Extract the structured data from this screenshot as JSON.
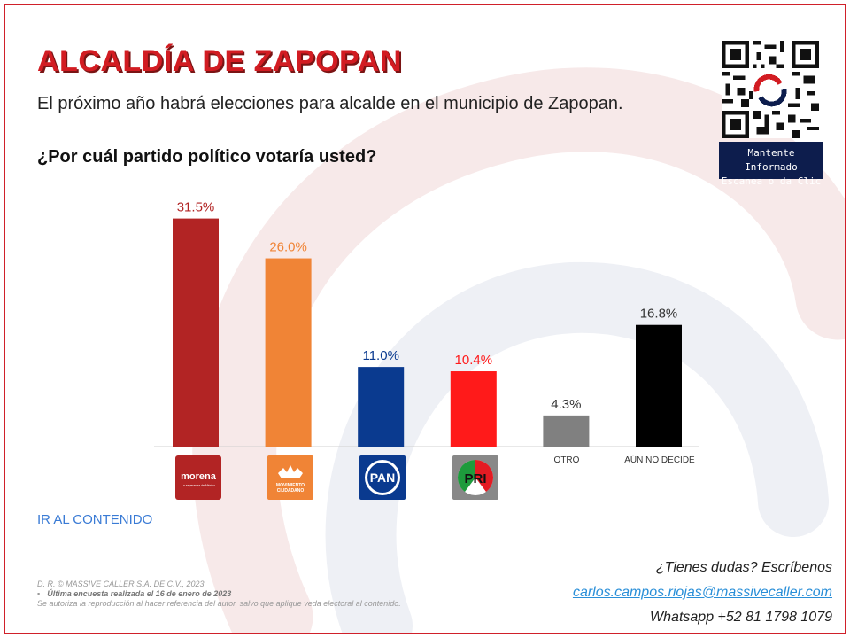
{
  "header": {
    "title": "ALCALDÍA DE ZAPOPAN",
    "subtitle": "El próximo año habrá elecciones para alcalde en el municipio de Zapopan.",
    "question": "¿Por cuál partido político votaría usted?"
  },
  "qr": {
    "caption_line1": "Mantente Informado",
    "caption_line2": "Escanea o da Clic"
  },
  "chart_data": {
    "type": "bar",
    "categories": [
      "morena",
      "MOVIMIENTO CIUDADANO",
      "PAN",
      "PRI",
      "OTRO",
      "AÚN NO DECIDE"
    ],
    "values": [
      31.5,
      26.0,
      11.0,
      10.4,
      4.3,
      16.8
    ],
    "data_labels": [
      "31.5%",
      "26.0%",
      "11.0%",
      "10.4%",
      "4.3%",
      "16.8%"
    ],
    "colors": [
      "#b22424",
      "#f08436",
      "#0a3a8f",
      "#ff1a1a",
      "#808080",
      "#000000"
    ],
    "label_colors": [
      "#b22424",
      "#f08436",
      "#0a3a8f",
      "#ff1a1a",
      "#333333",
      "#333333"
    ],
    "text_categories": [
      "OTRO",
      "AÚN NO DECIDE"
    ],
    "logo_texts": {
      "morena": "morena",
      "morena_sub": "La esperanza de México",
      "mc_line1": "MOVIMIENTO",
      "mc_line2": "CIUDADANO",
      "pan": "PAN",
      "pri": "PRI"
    },
    "ylim": [
      0,
      35
    ],
    "grid": false,
    "legend": "none"
  },
  "links": {
    "contenido": "IR AL CONTENIDO"
  },
  "footer": {
    "copyright": "D. R. © MASSIVE CALLER S.A. DE C.V., 2023",
    "bullet": "▪",
    "survey": "Última encuesta realizada el 16 de enero de 2023",
    "disclaimer": "Se autoriza la reproducción al hacer referencia del autor, salvo que aplique veda electoral al contenido."
  },
  "contact": {
    "question": "¿Tienes dudas? Escríbenos",
    "email": "carlos.campos.riojas@massivecaller.com",
    "whatsapp": "Whatsapp +52 81 1798 1079"
  }
}
